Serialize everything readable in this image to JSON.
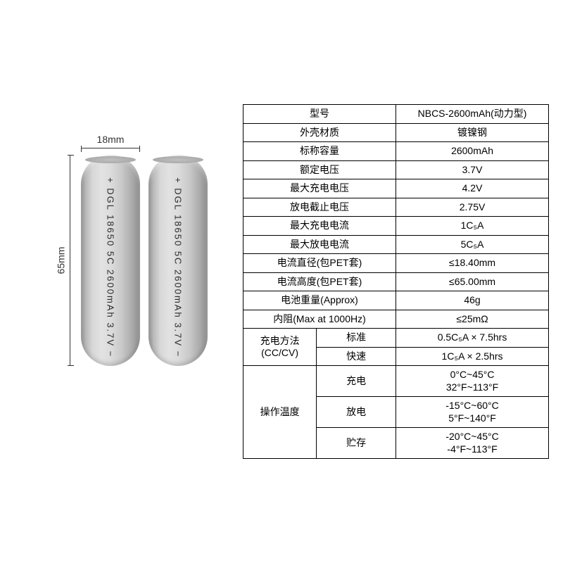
{
  "dimensions": {
    "width_label": "18mm",
    "height_label": "65mm"
  },
  "battery": {
    "print_text": "+ DGL 18650 5C 2600mAh 3.7V −"
  },
  "spec": {
    "rows_simple": [
      {
        "label": "型号",
        "value": "NBCS-2600mAh(动力型)"
      },
      {
        "label": "外壳材质",
        "value": "镀镍钢"
      },
      {
        "label": "标称容量",
        "value": "2600mAh"
      },
      {
        "label": "额定电压",
        "value": "3.7V"
      },
      {
        "label": "最大充电电压",
        "value": "4.2V"
      },
      {
        "label": "放电截止电压",
        "value": "2.75V"
      },
      {
        "label": "最大充电电流",
        "value": "1C₅A"
      },
      {
        "label": "最大放电电流",
        "value": "5C₅A"
      },
      {
        "label": "电流直径(包PET套)",
        "value": "≤18.40mm"
      },
      {
        "label": "电流高度(包PET套)",
        "value": "≤65.00mm"
      },
      {
        "label": "电池重量(Approx)",
        "value": "46g"
      },
      {
        "label": "内阻(Max at 1000Hz)",
        "value": "≤25mΩ"
      }
    ],
    "charge_method": {
      "group_label": "充电方法\n(CC/CV)",
      "rows": [
        {
          "sub": "标准",
          "value": "0.5C₅A × 7.5hrs"
        },
        {
          "sub": "快速",
          "value": "1C₅A × 2.5hrs"
        }
      ]
    },
    "op_temp": {
      "group_label": "操作温度",
      "rows": [
        {
          "sub": "充电",
          "value": "0°C~45°C\n32°F~113°F"
        },
        {
          "sub": "放电",
          "value": "-15°C~60°C\n5°F~140°F"
        },
        {
          "sub": "贮存",
          "value": "-20°C~45°C\n-4°F~113°F"
        }
      ]
    }
  },
  "style": {
    "table_border_color": "#000000",
    "text_color": "#000000",
    "background": "#ffffff",
    "font_size_cell": 14,
    "battery_gradient": [
      "#8b8b8b",
      "#b8b8b8",
      "#d8d8d8",
      "#e2e2e2",
      "#dcdcdc",
      "#c8c8c8",
      "#a8a8a8",
      "#8a8a8a"
    ],
    "battery_label_color": "#2a2a2a"
  }
}
